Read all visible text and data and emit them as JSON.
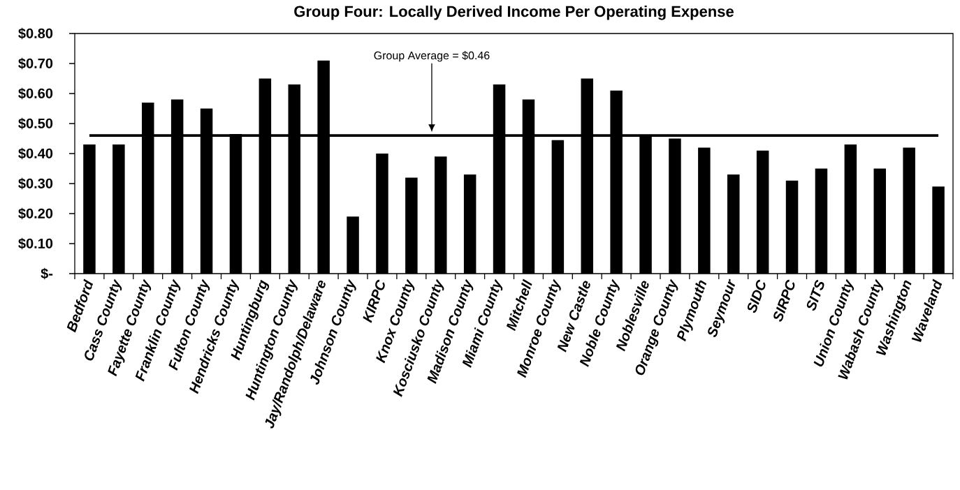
{
  "chart_data": {
    "type": "bar",
    "title": "Group Four: Locally Derived Income Per Operating Expense",
    "categories": [
      "Bedford",
      "Cass County",
      "Fayette County",
      "Franklin County",
      "Fulton County",
      "Hendricks County",
      "Huntingburg",
      "Huntington County",
      "Jay/Randolph/Delaware",
      "Johnson County",
      "KIRPC",
      "Knox County",
      "Kosciusko County",
      "Madison County",
      "Miami County",
      "Mitchell",
      "Monroe County",
      "New Castle",
      "Noble County",
      "Noblesville",
      "Orange County",
      "Plymouth",
      "Seymour",
      "SIDC",
      "SIRPC",
      "SITS",
      "Union County",
      "Wabash County",
      "Washington",
      "Waveland"
    ],
    "values": [
      0.43,
      0.43,
      0.57,
      0.58,
      0.55,
      0.465,
      0.65,
      0.63,
      0.71,
      0.19,
      0.4,
      0.32,
      0.39,
      0.33,
      0.63,
      0.58,
      0.445,
      0.65,
      0.61,
      0.46,
      0.45,
      0.42,
      0.33,
      0.41,
      0.31,
      0.35,
      0.43,
      0.35,
      0.42,
      0.29
    ],
    "color": "#000000",
    "ylim": [
      0,
      0.8
    ],
    "yticks": [
      {
        "value": 0,
        "label": "$-"
      },
      {
        "value": 0.1,
        "label": "$0.10"
      },
      {
        "value": 0.2,
        "label": "$0.20"
      },
      {
        "value": 0.3,
        "label": "$0.30"
      },
      {
        "value": 0.4,
        "label": "$0.40"
      },
      {
        "value": 0.5,
        "label": "$0.50"
      },
      {
        "value": 0.6,
        "label": "$0.60"
      },
      {
        "value": 0.7,
        "label": "$0.70"
      },
      {
        "value": 0.8,
        "label": "$0.80"
      }
    ],
    "ref_lines": [
      {
        "axis": "y",
        "value": 0.46,
        "label": "Group Average = $0.46",
        "color": "#000000"
      }
    ]
  }
}
